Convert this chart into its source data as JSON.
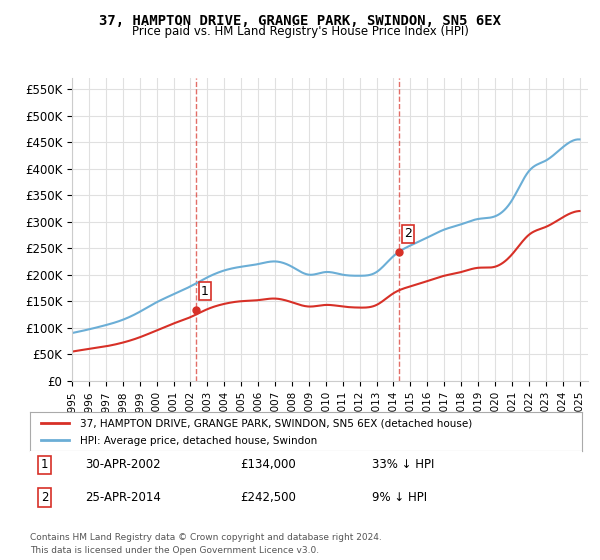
{
  "title": "37, HAMPTON DRIVE, GRANGE PARK, SWINDON, SN5 6EX",
  "subtitle": "Price paid vs. HM Land Registry's House Price Index (HPI)",
  "ylabel_ticks": [
    0,
    50000,
    100000,
    150000,
    200000,
    250000,
    300000,
    350000,
    400000,
    450000,
    500000,
    550000
  ],
  "ylabel_labels": [
    "£0",
    "£50K",
    "£100K",
    "£150K",
    "£200K",
    "£250K",
    "£300K",
    "£350K",
    "£400K",
    "£450K",
    "£500K",
    "£550K"
  ],
  "xlim": [
    1995.0,
    2025.5
  ],
  "ylim": [
    0,
    570000
  ],
  "sale1_x": 2002.33,
  "sale1_y": 134000,
  "sale1_label": "1",
  "sale2_x": 2014.33,
  "sale2_y": 242500,
  "sale2_label": "2",
  "hpi_color": "#6baed6",
  "price_color": "#d73027",
  "vline_color": "#d73027",
  "legend_entry1": "37, HAMPTON DRIVE, GRANGE PARK, SWINDON, SN5 6EX (detached house)",
  "legend_entry2": "HPI: Average price, detached house, Swindon",
  "annotation1_date": "30-APR-2002",
  "annotation1_price": "£134,000",
  "annotation1_hpi": "33% ↓ HPI",
  "annotation2_date": "25-APR-2014",
  "annotation2_price": "£242,500",
  "annotation2_hpi": "9% ↓ HPI",
  "footer": "Contains HM Land Registry data © Crown copyright and database right 2024.\nThis data is licensed under the Open Government Licence v3.0.",
  "background_color": "#ffffff",
  "grid_color": "#e0e0e0"
}
